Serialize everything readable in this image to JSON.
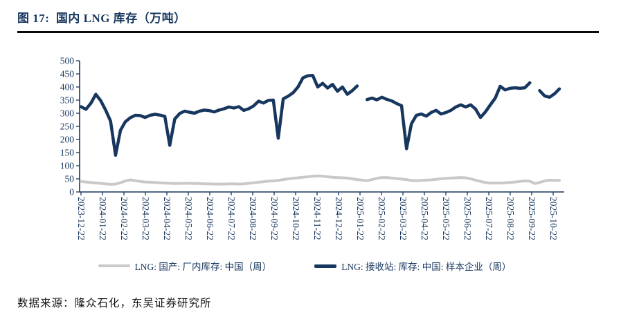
{
  "header": {
    "title": "图 17:  国内 LNG 库存（万吨）"
  },
  "footer": {
    "source": "数据来源：隆众石化，东吴证券研究所"
  },
  "colors": {
    "accent_navy": "#17375E",
    "series_gray": "#C9C9C9",
    "axis": "#17375E",
    "title_rule": "#0A0A0A",
    "source_text": "#141414"
  },
  "chart_data": {
    "type": "line",
    "title": "国内 LNG 库存（万吨）",
    "unit": "万吨",
    "ylim": [
      0,
      500
    ],
    "y_ticks": [
      0,
      50,
      100,
      150,
      200,
      250,
      300,
      350,
      400,
      450,
      500
    ],
    "grid": false,
    "legend_position": "bottom",
    "x_tick_labels": [
      "2023-12-22",
      "2024-01-22",
      "2024-02-22",
      "2024-03-22",
      "2024-04-22",
      "2024-05-22",
      "2024-06-22",
      "2024-07-22",
      "2024-08-22",
      "2024-09-22",
      "2024-10-22",
      "2024-11-22",
      "2024-12-22",
      "2025-01-22",
      "2025-02-22",
      "2025-03-22",
      "2025-04-22",
      "2025-05-22",
      "2025-06-22",
      "2025-07-22",
      "2025-08-22",
      "2025-09-22",
      "2025-10-22"
    ],
    "x_frequency": "weekly",
    "series": [
      {
        "name": "LNG: 国产: 厂内库存: 中国（周）",
        "color": "#C9C9C9",
        "stroke_width": 4,
        "values": [
          40,
          38,
          36,
          34,
          33,
          31,
          29,
          30,
          35,
          42,
          46,
          43,
          40,
          38,
          37,
          36,
          35,
          34,
          33,
          32,
          32,
          33,
          33,
          32,
          32,
          31,
          31,
          30,
          30,
          30,
          31,
          31,
          30,
          31,
          33,
          35,
          37,
          39,
          41,
          42,
          44,
          47,
          50,
          52,
          54,
          56,
          58,
          60,
          61,
          60,
          58,
          56,
          55,
          54,
          53,
          50,
          47,
          45,
          43,
          47,
          52,
          55,
          55,
          53,
          51,
          49,
          47,
          44,
          43,
          44,
          45,
          46,
          48,
          50,
          52,
          53,
          54,
          55,
          54,
          50,
          45,
          40,
          36,
          34,
          34,
          34,
          35,
          36,
          38,
          40,
          42,
          41,
          32,
          36,
          42,
          45,
          44,
          44
        ]
      },
      {
        "name": "LNG: 接收站: 库存: 中国: 样本企业（周）",
        "color": "#17375E",
        "stroke_width": 4.5,
        "values": [
          325,
          315,
          338,
          372,
          348,
          312,
          270,
          140,
          235,
          268,
          283,
          292,
          291,
          284,
          292,
          296,
          293,
          288,
          178,
          278,
          299,
          308,
          304,
          300,
          308,
          312,
          310,
          305,
          312,
          317,
          324,
          320,
          325,
          311,
          317,
          328,
          346,
          339,
          349,
          350,
          205,
          355,
          365,
          378,
          400,
          435,
          443,
          444,
          400,
          414,
          396,
          410,
          384,
          400,
          372,
          386,
          404,
          null,
          352,
          358,
          351,
          361,
          353,
          347,
          337,
          329,
          165,
          260,
          292,
          297,
          289,
          303,
          311,
          297,
          303,
          311,
          324,
          332,
          324,
          332,
          316,
          284,
          305,
          332,
          358,
          403,
          389,
          395,
          397,
          395,
          397,
          416,
          null,
          386,
          366,
          361,
          374,
          393
        ]
      }
    ]
  }
}
